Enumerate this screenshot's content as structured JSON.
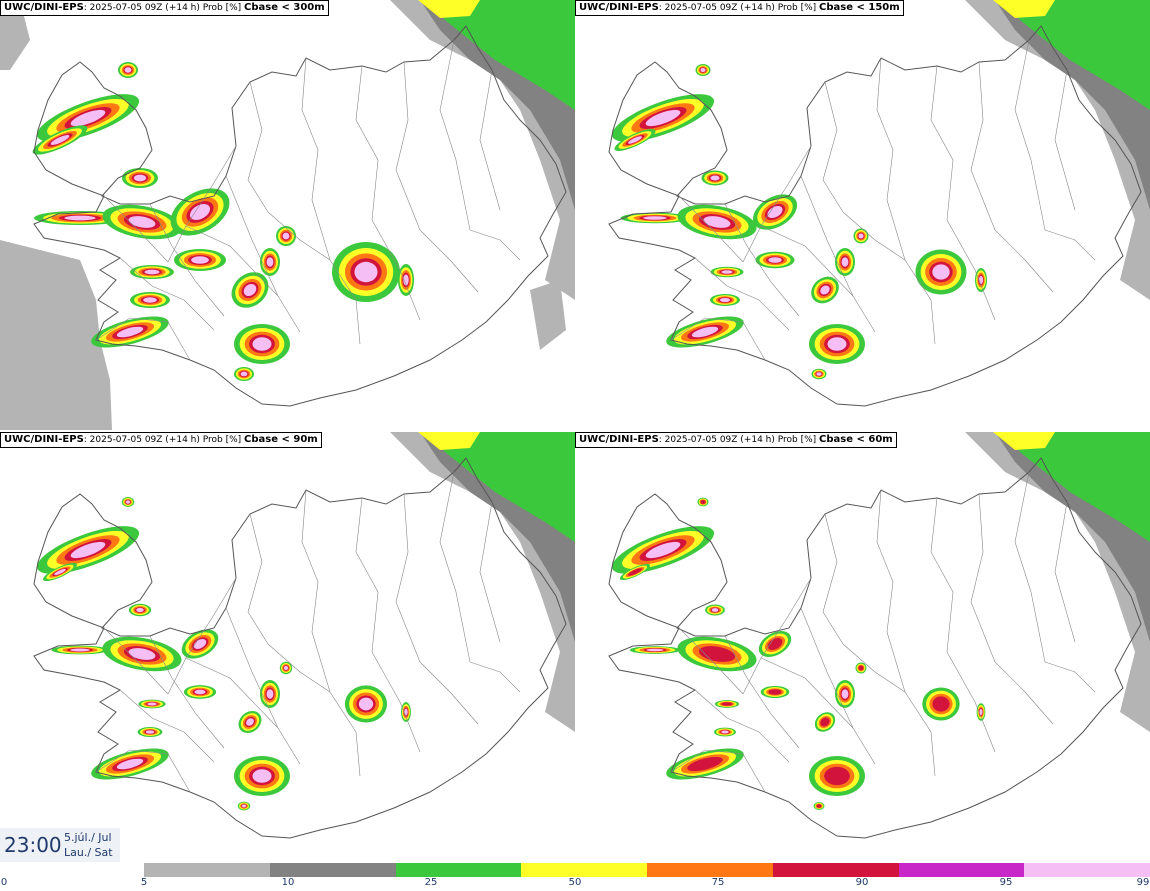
{
  "panels": [
    {
      "model": "UWC/DINI-EPS",
      "run": ": 2025-07-05 09Z (+14 h) Prob [%]",
      "threshold": "Cbase < 300m",
      "level": 1.0
    },
    {
      "model": "UWC/DINI-EPS",
      "run": ": 2025-07-05 09Z (+14 h) Prob [%]",
      "threshold": "Cbase < 150m",
      "level": 0.75
    },
    {
      "model": "UWC/DINI-EPS",
      "run": ": 2025-07-05 09Z (+14 h) Prob [%]",
      "threshold": "Cbase < 90m",
      "level": 0.62
    },
    {
      "model": "UWC/DINI-EPS",
      "run": ": 2025-07-05 09Z (+14 h) Prob [%]",
      "threshold": "Cbase < 60m",
      "level": 0.55
    }
  ],
  "time": {
    "clock": "23:00",
    "date_line1": "5.júl./ Jul",
    "date_line2": "Lau./ Sat"
  },
  "colorbar": {
    "ticks": [
      "0",
      "5",
      "10",
      "25",
      "50",
      "75",
      "90",
      "95",
      "99"
    ],
    "colors": [
      "#b4b4b4",
      "#828282",
      "#3cc83c",
      "#ffff28",
      "#ff7814",
      "#d2143c",
      "#c828c8",
      "#f5bef5"
    ]
  }
}
